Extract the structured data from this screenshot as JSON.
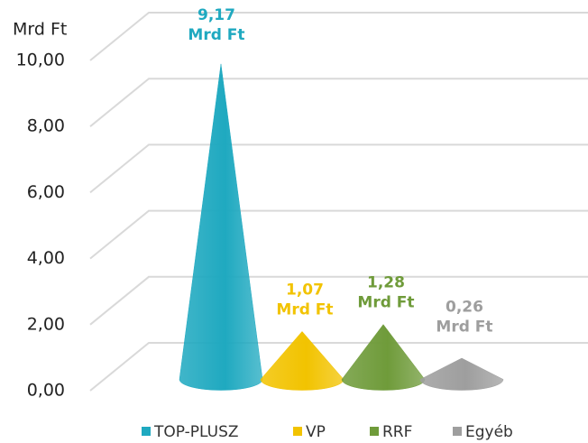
{
  "chart_data": {
    "type": "cone",
    "y_axis_label": "Mrd Ft",
    "ylim": [
      0,
      10
    ],
    "yticks": [
      {
        "value": 0,
        "label": "0,00"
      },
      {
        "value": 2,
        "label": "2,00"
      },
      {
        "value": 4,
        "label": "4,00"
      },
      {
        "value": 6,
        "label": "6,00"
      },
      {
        "value": 8,
        "label": "8,00"
      },
      {
        "value": 10,
        "label": "10,00"
      }
    ],
    "grid": true,
    "legend": "bottom",
    "series": [
      {
        "name": "TOP-PLUSZ",
        "color": "#1fa9c0",
        "values": [
          9.17
        ],
        "value_labels": [
          "9,17\nMrd Ft"
        ]
      },
      {
        "name": "VP",
        "color": "#f2c300",
        "values": [
          1.07
        ],
        "value_labels": [
          "1,07\nMrd Ft"
        ]
      },
      {
        "name": "RRF",
        "color": "#6f9b3a",
        "values": [
          1.28
        ],
        "value_labels": [
          "1,28\nMrd Ft"
        ]
      },
      {
        "name": "Egyéb",
        "color": "#9e9e9e",
        "values": [
          0.26
        ],
        "value_labels": [
          "0,26\nMrd Ft"
        ]
      }
    ]
  }
}
